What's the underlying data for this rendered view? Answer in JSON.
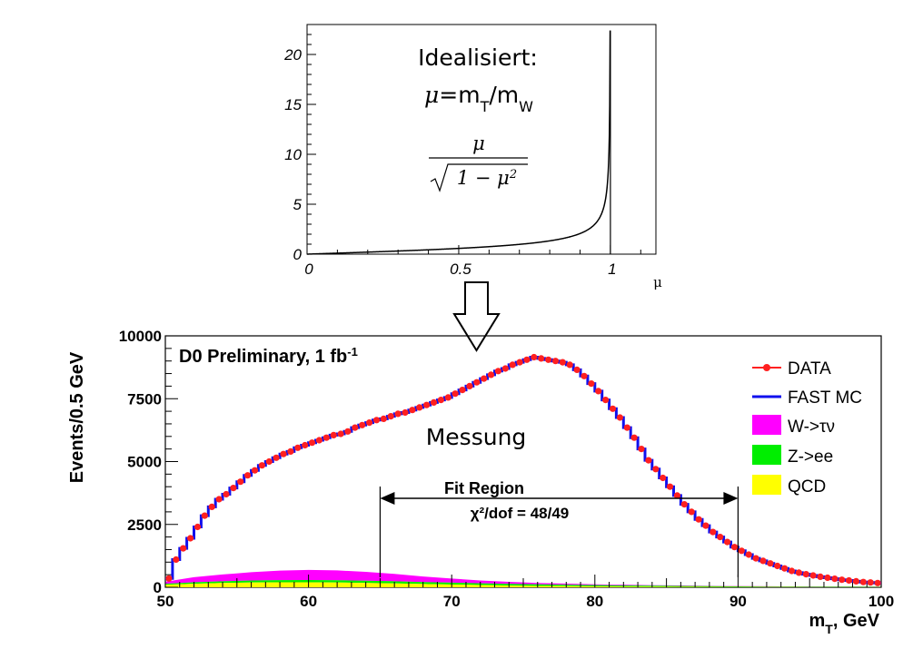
{
  "chart_data": [
    {
      "type": "line",
      "title_line1": "Idealisiert:",
      "title_line2_mu": "μ",
      "title_line2_rest": "=m",
      "title_line2_sub1": "T",
      "title_line2_slash": "/m",
      "title_line2_sub2": "W",
      "formula_numerator": "μ",
      "formula_denominator": "1 − μ",
      "formula_power": "2",
      "xlabel": "μ",
      "xlim": [
        0,
        1.15
      ],
      "ylim": [
        0,
        23
      ],
      "x_ticks": [
        {
          "value": 0,
          "label": "0"
        },
        {
          "value": 0.5,
          "label": "0.5"
        },
        {
          "value": 1,
          "label": "1"
        }
      ],
      "y_ticks": [
        {
          "value": 0,
          "label": "0"
        },
        {
          "value": 5,
          "label": "5"
        },
        {
          "value": 10,
          "label": "10"
        },
        {
          "value": 15,
          "label": "15"
        },
        {
          "value": 20,
          "label": "20"
        }
      ],
      "curve_max_y": 22.4
    },
    {
      "type": "line",
      "title": "D0 Preliminary, 1 fb",
      "title_sup": "-1",
      "annotation": "Messung",
      "fit_region_label": "Fit Region",
      "chi2_label": "χ²/dof = 48/49",
      "fit_region": [
        65,
        90
      ],
      "xlabel": "m",
      "xlabel_sub": "T",
      "xlabel_rest": ", GeV",
      "ylabel": "Events/0.5 GeV",
      "xlim": [
        50,
        100
      ],
      "ylim": [
        0,
        10000
      ],
      "x_ticks": [
        "50",
        "60",
        "70",
        "80",
        "90",
        "100"
      ],
      "y_ticks": [
        "0",
        "2500",
        "5000",
        "7500",
        "10000"
      ],
      "series": [
        {
          "name": "DATA",
          "color": "#ff2020",
          "x": [
            50.0,
            50.5,
            51.0,
            51.5,
            52.0,
            52.5,
            53.0,
            53.5,
            54.0,
            54.5,
            55.0,
            55.5,
            56.0,
            56.5,
            57.0,
            57.5,
            58.0,
            58.5,
            59.0,
            59.5,
            60.0,
            60.5,
            61.0,
            61.5,
            62.0,
            62.5,
            63.0,
            63.5,
            64.0,
            64.5,
            65.0,
            65.5,
            66.0,
            66.5,
            67.0,
            67.5,
            68.0,
            68.5,
            69.0,
            69.5,
            70.0,
            70.5,
            71.0,
            71.5,
            72.0,
            72.5,
            73.0,
            73.5,
            74.0,
            74.5,
            75.0,
            75.5,
            76.0,
            76.5,
            77.0,
            77.5,
            78.0,
            78.5,
            79.0,
            79.5,
            80.0,
            80.5,
            81.0,
            81.5,
            82.0,
            82.5,
            83.0,
            83.5,
            84.0,
            84.5,
            85.0,
            85.5,
            86.0,
            86.5,
            87.0,
            87.5,
            88.0,
            88.5,
            89.0,
            89.5,
            90.0,
            90.5,
            91.0,
            91.5,
            92.0,
            92.5,
            93.0,
            93.5,
            94.0,
            94.5,
            95.0,
            95.5,
            96.0,
            96.5,
            97.0,
            97.5,
            98.0,
            98.5,
            99.0,
            99.5
          ],
          "values": [
            350,
            1100,
            1550,
            1950,
            2400,
            2850,
            3200,
            3500,
            3700,
            3950,
            4200,
            4450,
            4650,
            4850,
            5000,
            5150,
            5300,
            5400,
            5550,
            5650,
            5750,
            5850,
            5950,
            6050,
            6100,
            6200,
            6350,
            6450,
            6550,
            6650,
            6700,
            6800,
            6900,
            6950,
            7050,
            7150,
            7250,
            7350,
            7450,
            7550,
            7700,
            7850,
            8000,
            8150,
            8300,
            8450,
            8600,
            8700,
            8850,
            8950,
            9050,
            9150,
            9100,
            9050,
            9000,
            8950,
            8850,
            8650,
            8400,
            8100,
            7800,
            7450,
            7100,
            6750,
            6350,
            5950,
            5500,
            5050,
            4700,
            4350,
            4000,
            3650,
            3300,
            3000,
            2700,
            2450,
            2200,
            2000,
            1800,
            1600,
            1450,
            1300,
            1150,
            1050,
            950,
            850,
            750,
            650,
            580,
            520,
            470,
            420,
            380,
            340,
            300,
            270,
            240,
            210,
            190,
            170
          ]
        },
        {
          "name": "FAST MC",
          "color": "#1010ee",
          "x": [
            50.0,
            50.5,
            51.0,
            51.5,
            52.0,
            52.5,
            53.0,
            53.5,
            54.0,
            54.5,
            55.0,
            55.5,
            56.0,
            56.5,
            57.0,
            57.5,
            58.0,
            58.5,
            59.0,
            59.5,
            60.0,
            60.5,
            61.0,
            61.5,
            62.0,
            62.5,
            63.0,
            63.5,
            64.0,
            64.5,
            65.0,
            65.5,
            66.0,
            66.5,
            67.0,
            67.5,
            68.0,
            68.5,
            69.0,
            69.5,
            70.0,
            70.5,
            71.0,
            71.5,
            72.0,
            72.5,
            73.0,
            73.5,
            74.0,
            74.5,
            75.0,
            75.5,
            76.0,
            76.5,
            77.0,
            77.5,
            78.0,
            78.5,
            79.0,
            79.5,
            80.0,
            80.5,
            81.0,
            81.5,
            82.0,
            82.5,
            83.0,
            83.5,
            84.0,
            84.5,
            85.0,
            85.5,
            86.0,
            86.5,
            87.0,
            87.5,
            88.0,
            88.5,
            89.0,
            89.5,
            90.0,
            90.5,
            91.0,
            91.5,
            92.0,
            92.5,
            93.0,
            93.5,
            94.0,
            94.5,
            95.0,
            95.5,
            96.0,
            96.5,
            97.0,
            97.5,
            98.0,
            98.5,
            99.0,
            99.5
          ],
          "values": [
            350,
            1100,
            1550,
            1950,
            2400,
            2850,
            3200,
            3500,
            3700,
            3950,
            4200,
            4450,
            4650,
            4850,
            5000,
            5150,
            5300,
            5400,
            5550,
            5650,
            5750,
            5850,
            5950,
            6050,
            6100,
            6200,
            6350,
            6450,
            6550,
            6650,
            6700,
            6800,
            6900,
            6950,
            7050,
            7150,
            7250,
            7350,
            7450,
            7550,
            7700,
            7850,
            8000,
            8150,
            8300,
            8450,
            8600,
            8700,
            8850,
            8950,
            9050,
            9150,
            9100,
            9050,
            9000,
            8950,
            8850,
            8650,
            8400,
            8100,
            7800,
            7450,
            7100,
            6750,
            6350,
            5950,
            5500,
            5050,
            4700,
            4350,
            4000,
            3650,
            3300,
            3000,
            2700,
            2450,
            2200,
            2000,
            1800,
            1600,
            1450,
            1300,
            1150,
            1050,
            950,
            850,
            750,
            650,
            580,
            520,
            470,
            420,
            380,
            340,
            300,
            270,
            240,
            210,
            190,
            170
          ]
        },
        {
          "name": "W->τν",
          "color": "#ff00ff",
          "x": [
            50,
            52,
            54,
            56,
            58,
            60,
            62,
            64,
            66,
            68,
            70,
            72,
            74,
            76,
            78,
            80,
            82,
            84,
            86,
            88,
            90,
            92,
            94,
            96,
            98,
            100
          ],
          "values": [
            80,
            200,
            270,
            330,
            380,
            400,
            390,
            350,
            290,
            220,
            160,
            110,
            80,
            60,
            45,
            35,
            28,
            22,
            18,
            14,
            10,
            8,
            6,
            5,
            4,
            3
          ]
        },
        {
          "name": "Z->ee",
          "color": "#00ee00",
          "x": [
            50,
            52,
            54,
            56,
            58,
            60,
            62,
            64,
            66,
            68,
            70,
            72,
            74,
            76,
            78,
            80,
            82,
            84,
            86,
            88,
            90,
            92,
            94,
            96,
            98,
            100
          ],
          "values": [
            40,
            60,
            70,
            80,
            85,
            90,
            90,
            88,
            85,
            80,
            75,
            70,
            65,
            60,
            55,
            50,
            45,
            40,
            35,
            30,
            25,
            22,
            20,
            18,
            16,
            15
          ]
        },
        {
          "name": "QCD",
          "color": "#ffff00",
          "x": [
            50,
            52,
            54,
            56,
            58,
            60,
            62,
            64,
            66,
            68,
            70,
            72,
            74,
            76,
            78,
            80,
            82,
            84,
            86,
            88,
            90,
            92,
            94,
            96,
            98,
            100
          ],
          "values": [
            100,
            140,
            170,
            190,
            200,
            200,
            190,
            175,
            155,
            130,
            110,
            90,
            70,
            55,
            45,
            35,
            28,
            22,
            18,
            14,
            10,
            8,
            6,
            5,
            4,
            3
          ]
        }
      ]
    }
  ]
}
